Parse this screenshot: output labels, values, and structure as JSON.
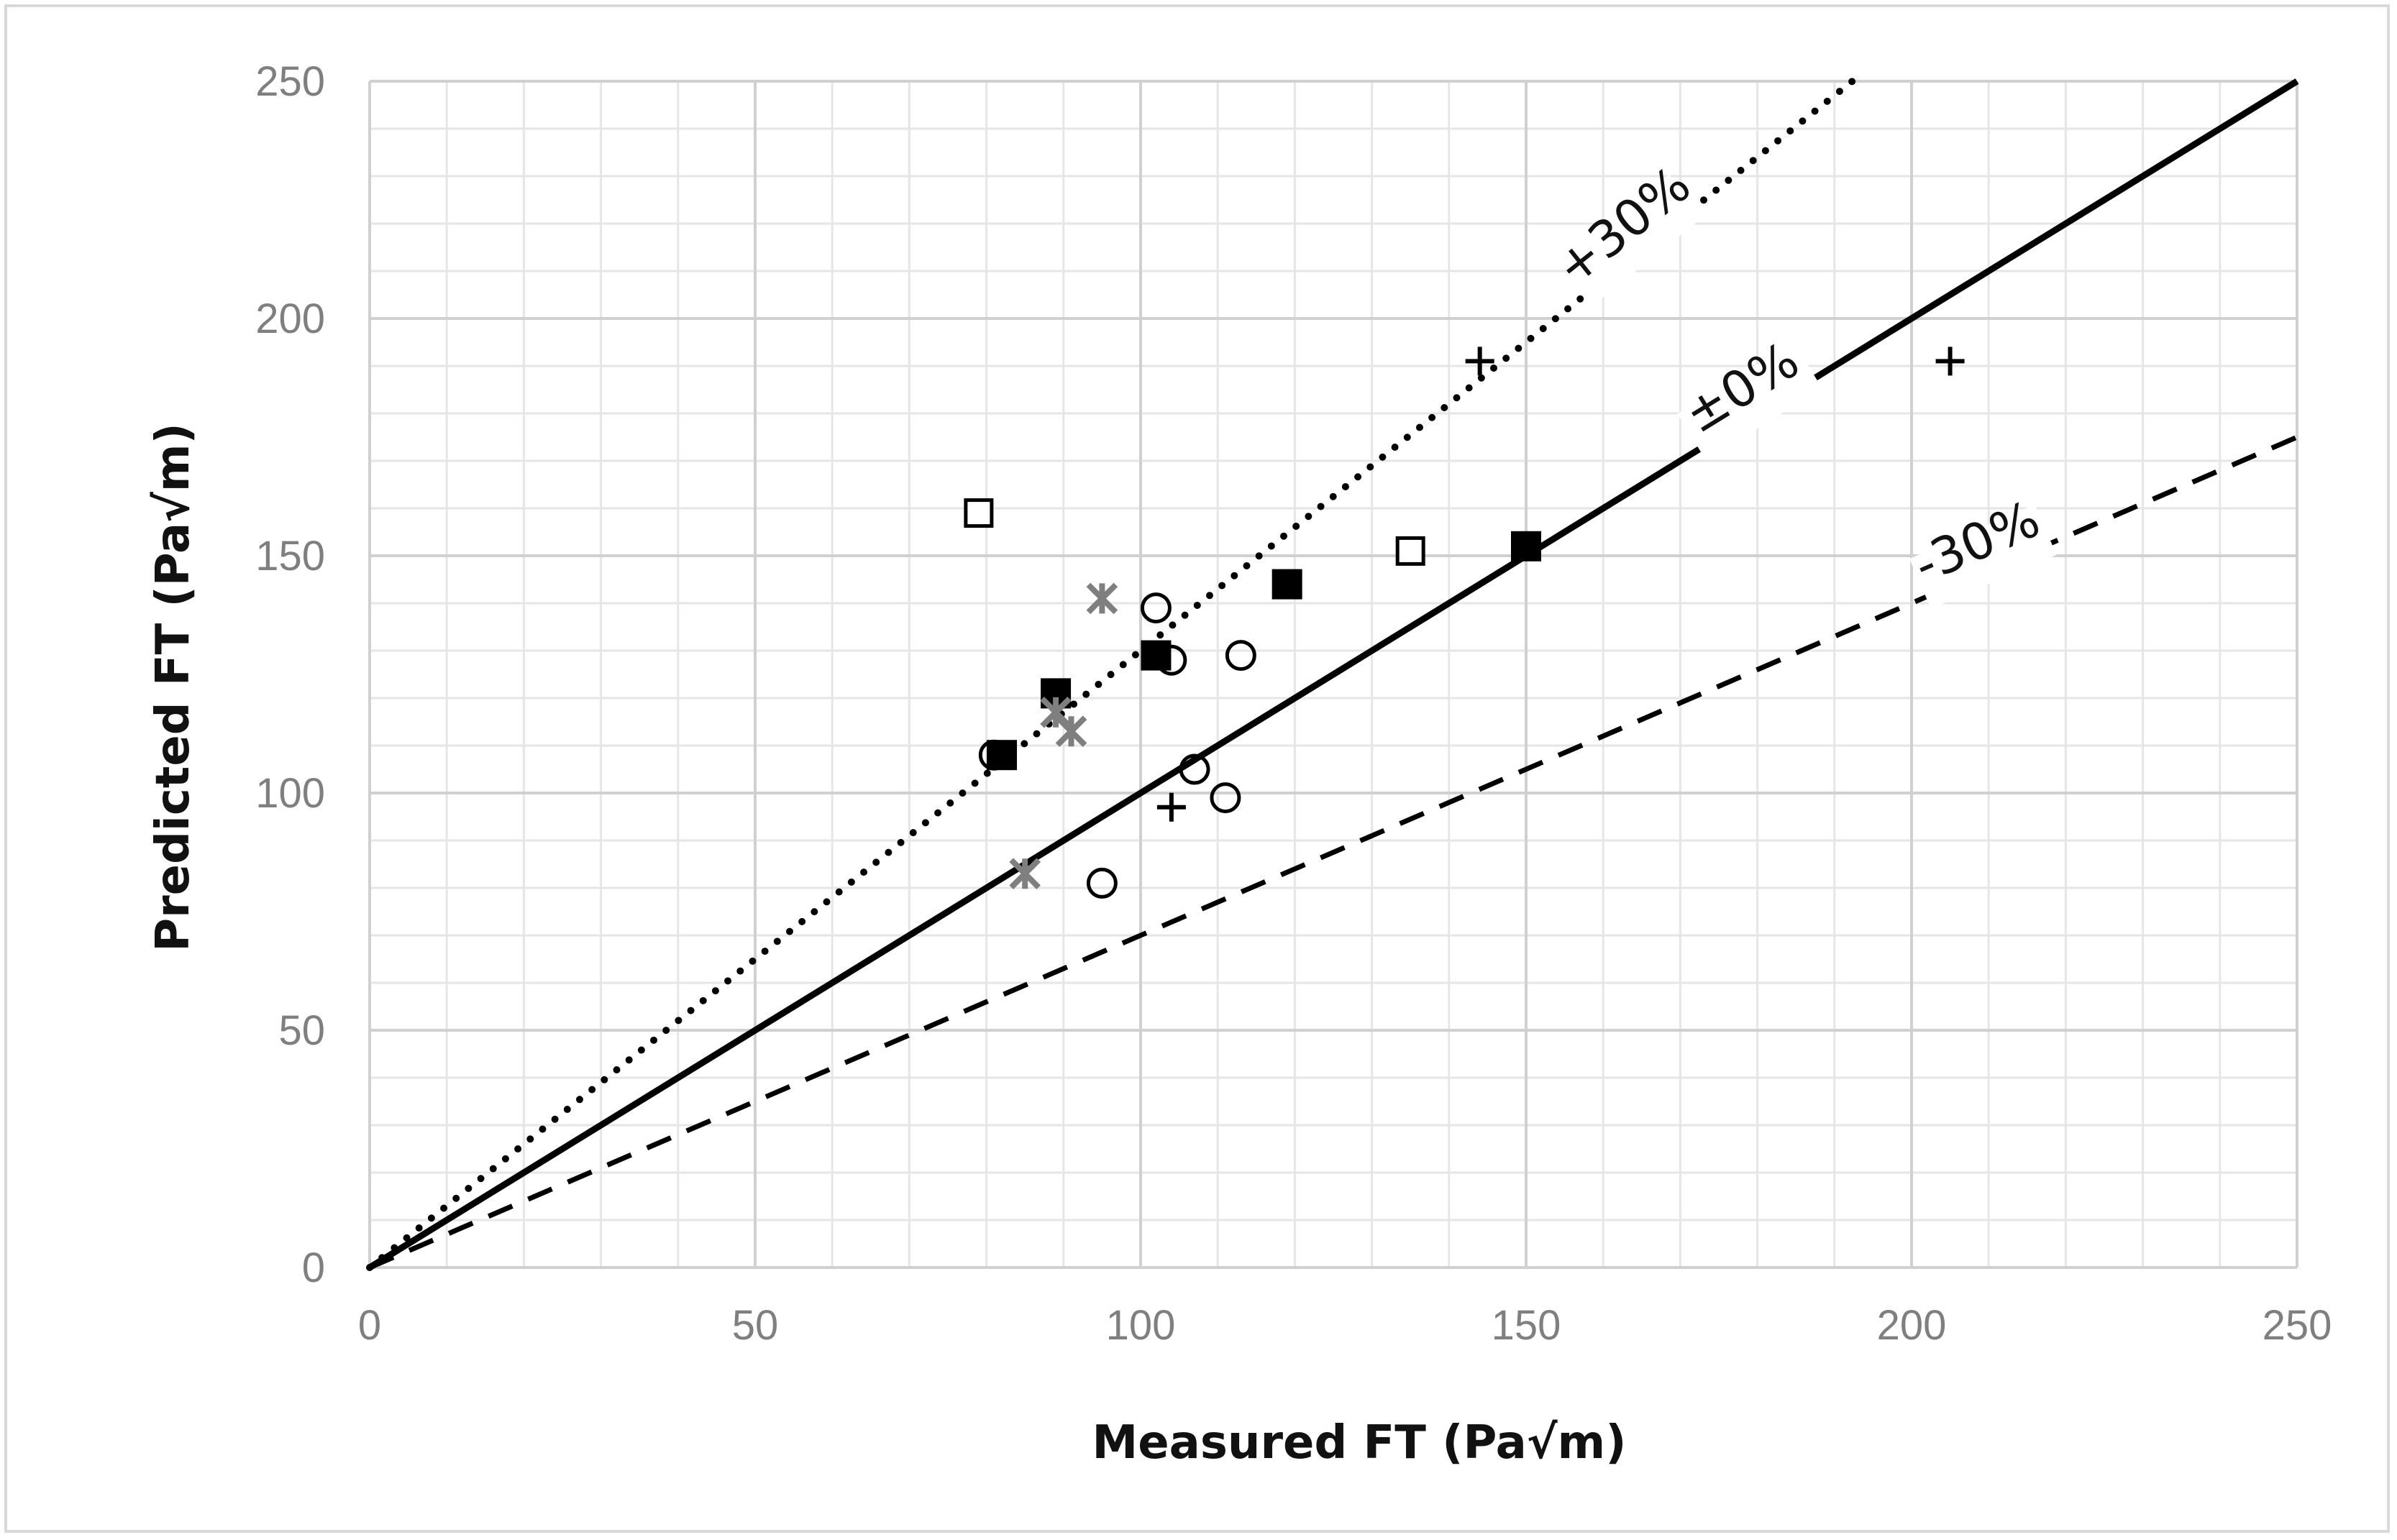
{
  "chart_data": {
    "type": "scatter",
    "title": "",
    "xlabel": "Measured FT (Pa√m)",
    "ylabel": "Predicted FT (Pa√m)",
    "xlim": [
      0,
      250
    ],
    "ylim": [
      0,
      250
    ],
    "x_ticks": [
      0,
      50,
      100,
      150,
      200,
      250
    ],
    "y_ticks": [
      0,
      50,
      100,
      150,
      200,
      250
    ],
    "minor_step": 10,
    "grid": true,
    "legend": "none",
    "reference_lines": [
      {
        "name": "plus30",
        "label": "+30%",
        "slope": 1.3,
        "style": "dotted"
      },
      {
        "name": "zero",
        "label": "±0%",
        "slope": 1.0,
        "style": "solid"
      },
      {
        "name": "minus30",
        "label": "-30%",
        "slope": 0.7,
        "style": "dashed"
      }
    ],
    "series": [
      {
        "name": "open-square",
        "marker": "open-square",
        "color": "#000000",
        "points": [
          [
            79,
            159
          ],
          [
            135,
            151
          ]
        ]
      },
      {
        "name": "filled-square",
        "marker": "filled-square",
        "color": "#000000",
        "points": [
          [
            82,
            108
          ],
          [
            89,
            121
          ],
          [
            102,
            129
          ],
          [
            119,
            144
          ],
          [
            150,
            152
          ]
        ]
      },
      {
        "name": "open-circle",
        "marker": "open-circle",
        "color": "#000000",
        "points": [
          [
            81,
            108
          ],
          [
            95,
            81
          ],
          [
            102,
            139
          ],
          [
            104,
            128
          ],
          [
            107,
            105
          ],
          [
            111,
            99
          ],
          [
            113,
            129
          ]
        ]
      },
      {
        "name": "plus",
        "marker": "plus",
        "color": "#000000",
        "points": [
          [
            104,
            97
          ],
          [
            144,
            191
          ],
          [
            205,
            191
          ]
        ]
      },
      {
        "name": "star",
        "marker": "star",
        "color": "#7f7f7f",
        "points": [
          [
            85,
            83
          ],
          [
            89,
            117
          ],
          [
            91,
            113
          ],
          [
            95,
            141
          ]
        ]
      }
    ]
  }
}
